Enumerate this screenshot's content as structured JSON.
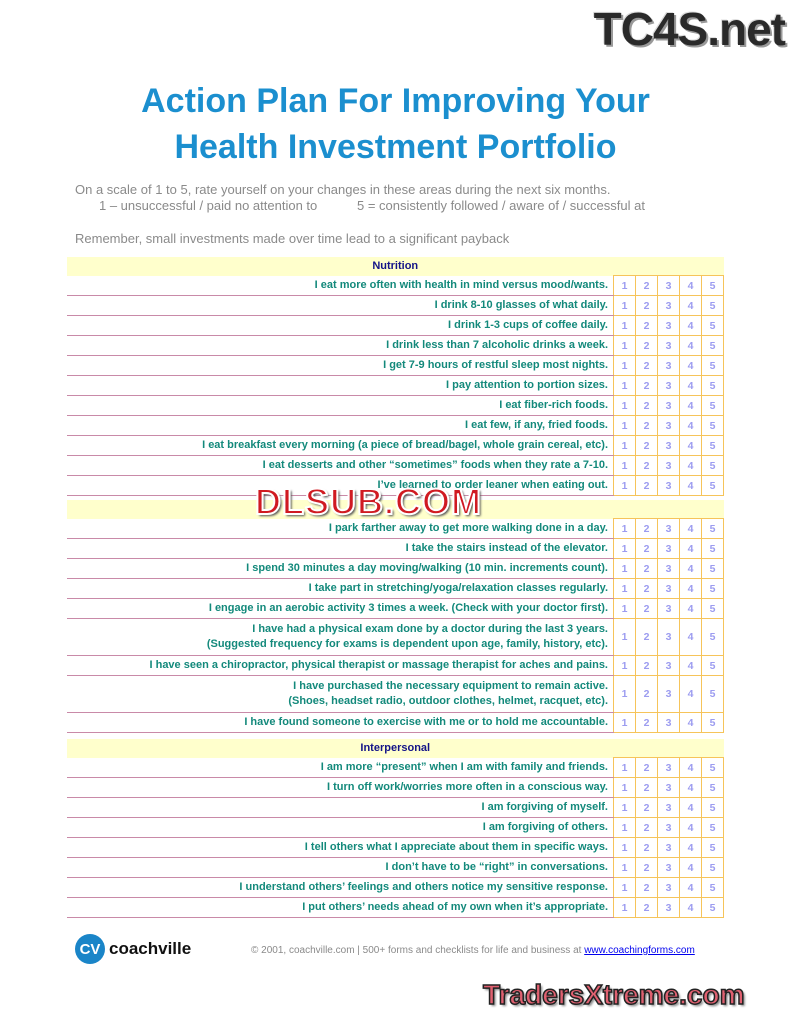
{
  "watermarks": {
    "top": "TC4S.net",
    "middle": "DLSUB.COM",
    "bottom": "TradersXtreme.com"
  },
  "title_line1": "Action Plan For Improving Your",
  "title_line2": "Health Investment Portfolio",
  "intro": {
    "line1": "On a scale of 1 to 5, rate yourself on your changes in these areas during the next six months.",
    "line2": "1 – unsuccessful / paid no attention to           5 = consistently followed / aware of / successful at",
    "line3": "Remember, small investments made over time lead to a significant payback"
  },
  "scale": [
    "1",
    "2",
    "3",
    "4",
    "5"
  ],
  "sections": [
    {
      "title": "Nutrition",
      "items": [
        "I eat more often with health in mind versus mood/wants.",
        "I drink 8-10 glasses of what daily.",
        "I drink 1-3 cups of coffee daily.",
        "I drink less than 7 alcoholic drinks a week.",
        "I get 7-9 hours of restful sleep most nights.",
        "I pay attention to portion sizes.",
        "I eat fiber-rich foods.",
        "I eat few, if any, fried foods.",
        "I eat breakfast every morning (a piece of bread/bagel, whole grain cereal, etc).",
        "I eat desserts and other “sometimes” foods when they rate a 7-10.",
        "I’ve learned to order leaner when eating out."
      ]
    },
    {
      "title": "",
      "items": [
        "I park farther away to get more walking done in a day.",
        "I take the stairs instead of the elevator.",
        "I spend 30 minutes a day moving/walking (10 min. increments count).",
        "I take part in stretching/yoga/relaxation classes regularly.",
        "I engage in an aerobic activity 3 times a week.  (Check with your doctor first).",
        "I have had a physical exam done by a doctor during the last 3 years.\n(Suggested frequency for exams is dependent upon age, family, history, etc).",
        "I have seen a chiropractor, physical therapist or massage therapist for aches and pains.",
        "I have purchased the necessary equipment to remain active.\n(Shoes, headset radio, outdoor clothes, helmet, racquet, etc).",
        "I have found someone to exercise with me or to hold me accountable."
      ]
    },
    {
      "title": "Interpersonal",
      "items": [
        "I am more “present” when I am with family and friends.",
        "I turn off work/worries more often in a conscious way.",
        "I am forgiving of myself.",
        "I am forgiving of others.",
        "I tell others what I appreciate about them in specific ways.",
        "I don’t have to be “right” in conversations.",
        "I understand others’ feelings and others notice my sensitive response.",
        "I put others’ needs ahead of my own when it’s appropriate."
      ]
    }
  ],
  "footer": {
    "logo_mark": "CV",
    "logo_text": "coachville",
    "copyright": "© 2001, coachville.com | 500+ forms and checklists for life and business at ",
    "link": "www.coachingforms.com"
  },
  "colors": {
    "title": "#1b8fcf",
    "item_text": "#13897b",
    "scale_numbers": "#9c9cf0",
    "section_bg": "#ffffcc",
    "section_text": "#141488"
  }
}
